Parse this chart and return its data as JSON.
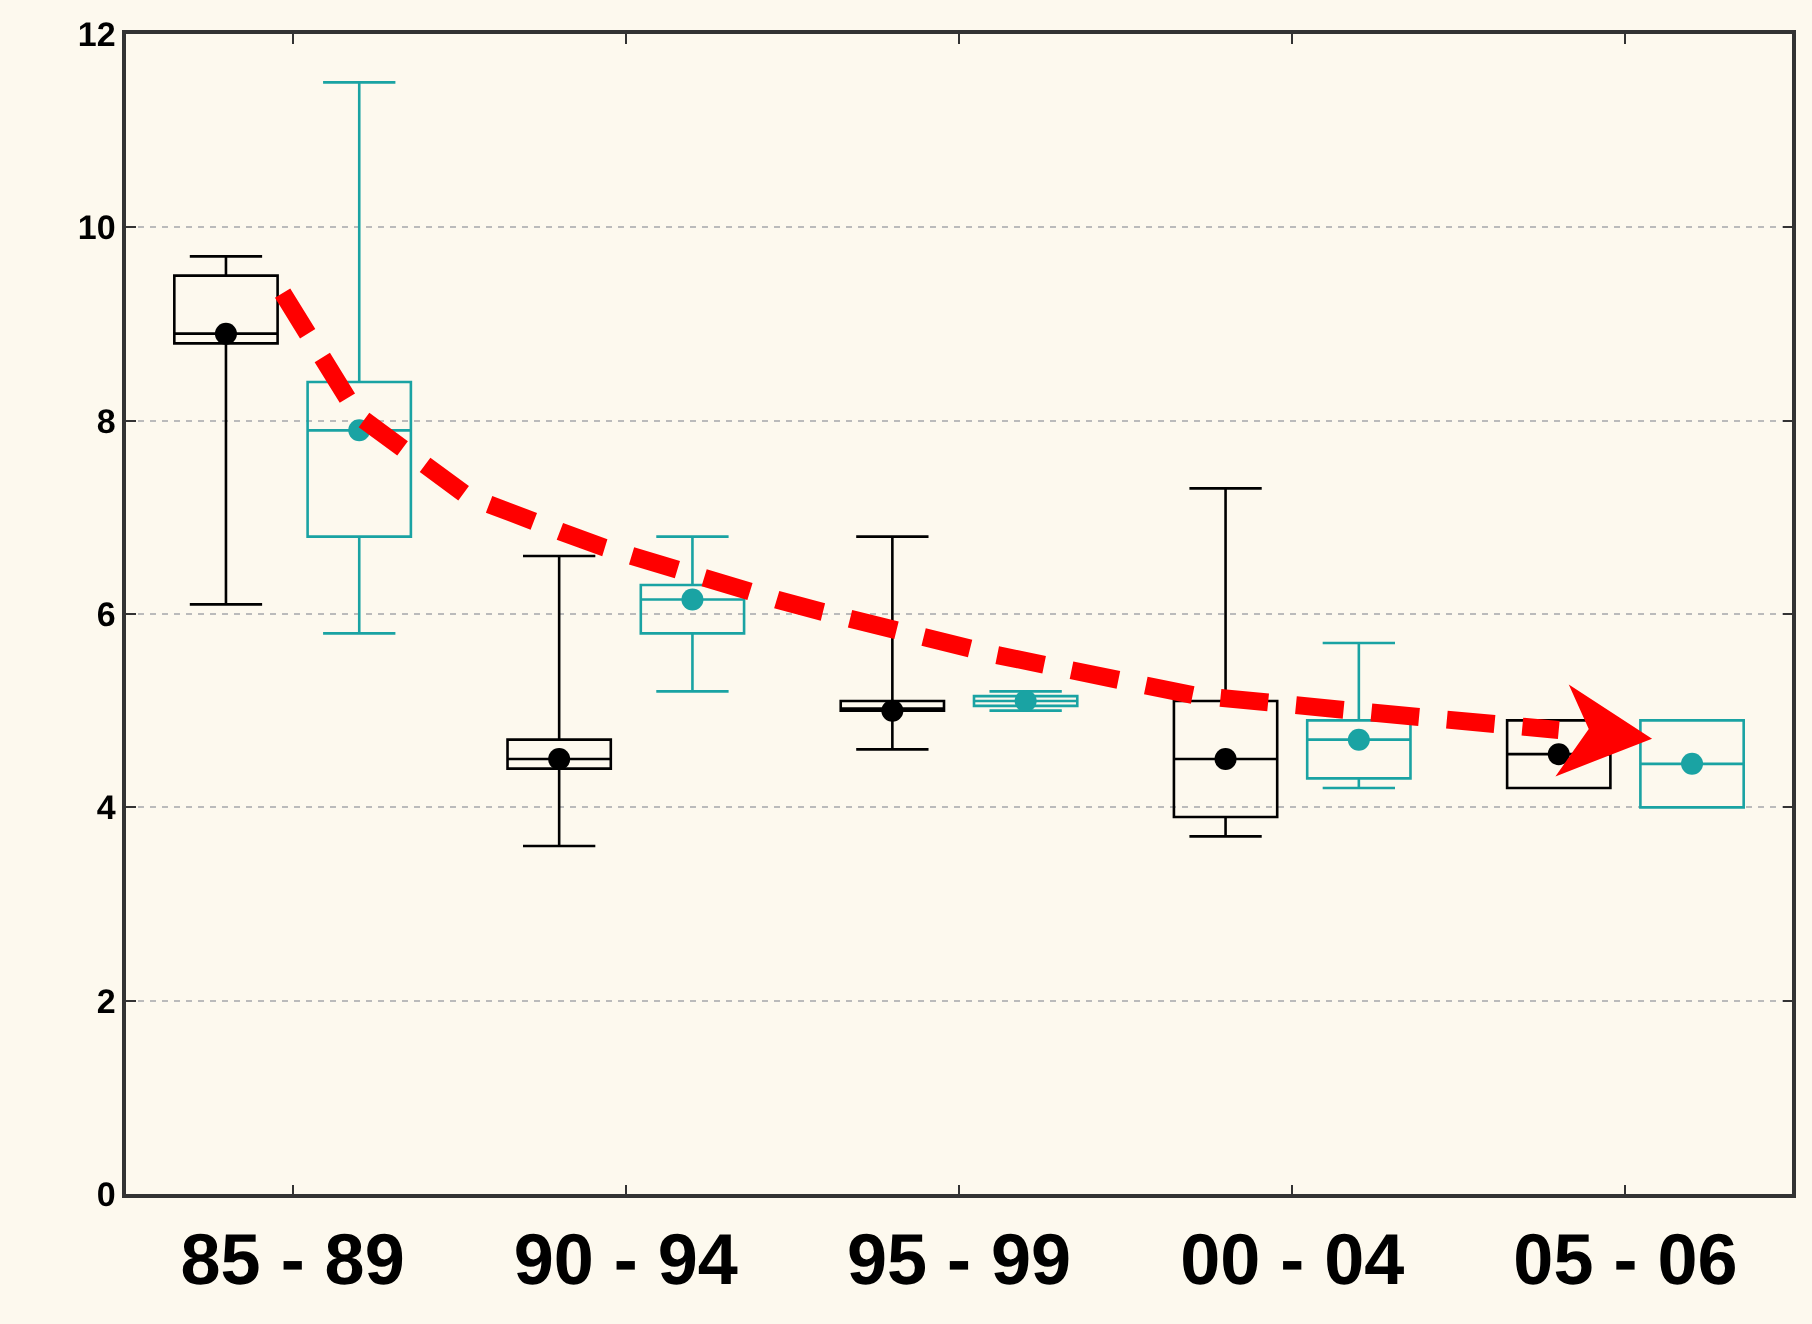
{
  "chart_data": {
    "type": "box",
    "categories": [
      "85 - 89",
      "90 - 94",
      "95 - 99",
      "00 - 04",
      "05 - 06"
    ],
    "series": [
      {
        "color": "#000000",
        "boxes": [
          {
            "low": 6.1,
            "q1": 8.8,
            "median": 8.9,
            "q3": 9.5,
            "high": 9.7
          },
          {
            "low": 3.6,
            "q1": 4.4,
            "median": 4.5,
            "q3": 4.7,
            "high": 6.6
          },
          {
            "low": 4.6,
            "q1": 5.0,
            "median": 5.0,
            "q3": 5.1,
            "high": 6.8
          },
          {
            "low": 3.7,
            "q1": 3.9,
            "median": 4.5,
            "q3": 5.1,
            "high": 7.3
          },
          {
            "low": 4.2,
            "q1": 4.2,
            "median": 4.55,
            "q3": 4.9,
            "high": 4.9
          }
        ]
      },
      {
        "color": "#1aa3a3",
        "boxes": [
          {
            "low": 5.8,
            "q1": 6.8,
            "median": 7.9,
            "q3": 8.4,
            "high": 11.5
          },
          {
            "low": 5.2,
            "q1": 5.8,
            "median": 6.15,
            "q3": 6.3,
            "high": 6.8
          },
          {
            "low": 5.0,
            "q1": 5.05,
            "median": 5.1,
            "q3": 5.15,
            "high": 5.2
          },
          {
            "low": 4.2,
            "q1": 4.3,
            "median": 4.7,
            "q3": 4.9,
            "high": 5.7
          },
          {
            "low": 4.0,
            "q1": 4.0,
            "median": 4.45,
            "q3": 4.9,
            "high": 4.9
          }
        ]
      },
      {
        "type": "scatter",
        "color": "#000000",
        "values": [
          8.9,
          4.5,
          5.0,
          4.5,
          4.55
        ]
      },
      {
        "type": "scatter",
        "color": "#1aa3a3",
        "values": [
          7.9,
          6.15,
          5.1,
          4.7,
          4.45
        ]
      }
    ],
    "ylim": [
      0,
      12
    ],
    "yticks": [
      0,
      2,
      4,
      6,
      8,
      10,
      12
    ],
    "grid": "y",
    "marker": "circle"
  }
}
